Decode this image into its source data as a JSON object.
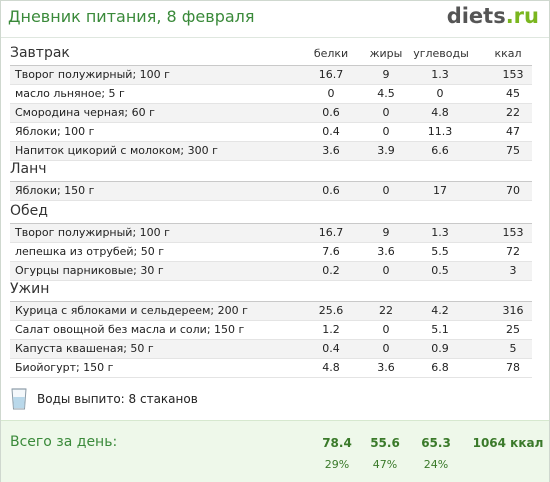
{
  "header": {
    "title": "Дневник питания, 8 февраля",
    "logo_main": "diets",
    "logo_tld": ".ru"
  },
  "columns": {
    "protein": "белки",
    "fat": "жиры",
    "carbs": "углеводы",
    "kcal": "ккал"
  },
  "meals": [
    {
      "title": "Завтрак",
      "items": [
        {
          "name": "Творог полужирный; 100 г",
          "protein": "16.7",
          "fat": "9",
          "carbs": "1.3",
          "kcal": "153"
        },
        {
          "name": "масло льняное; 5 г",
          "protein": "0",
          "fat": "4.5",
          "carbs": "0",
          "kcal": "45"
        },
        {
          "name": "Смородина черная; 60 г",
          "protein": "0.6",
          "fat": "0",
          "carbs": "4.8",
          "kcal": "22"
        },
        {
          "name": "Яблоки; 100 г",
          "protein": "0.4",
          "fat": "0",
          "carbs": "11.3",
          "kcal": "47"
        },
        {
          "name": "Напиток цикорий с молоком; 300 г",
          "protein": "3.6",
          "fat": "3.9",
          "carbs": "6.6",
          "kcal": "75"
        }
      ]
    },
    {
      "title": "Ланч",
      "items": [
        {
          "name": "Яблоки; 150 г",
          "protein": "0.6",
          "fat": "0",
          "carbs": "17",
          "kcal": "70"
        }
      ]
    },
    {
      "title": "Обед",
      "items": [
        {
          "name": "Творог полужирный; 100 г",
          "protein": "16.7",
          "fat": "9",
          "carbs": "1.3",
          "kcal": "153"
        },
        {
          "name": "лепешка из отрубей; 50 г",
          "protein": "7.6",
          "fat": "3.6",
          "carbs": "5.5",
          "kcal": "72"
        },
        {
          "name": "Огурцы парниковые; 30 г",
          "protein": "0.2",
          "fat": "0",
          "carbs": "0.5",
          "kcal": "3"
        }
      ]
    },
    {
      "title": "Ужин",
      "items": [
        {
          "name": "Курица с яблоками и сельдереем; 200 г",
          "protein": "25.6",
          "fat": "22",
          "carbs": "4.2",
          "kcal": "316"
        },
        {
          "name": "Салат овощной без масла и соли; 150 г",
          "protein": "1.2",
          "fat": "0",
          "carbs": "5.1",
          "kcal": "25"
        },
        {
          "name": "Капуста квашеная; 50 г",
          "protein": "0.4",
          "fat": "0",
          "carbs": "0.9",
          "kcal": "5"
        },
        {
          "name": "Биойогурт; 150 г",
          "protein": "4.8",
          "fat": "3.6",
          "carbs": "6.8",
          "kcal": "78"
        }
      ]
    }
  ],
  "water": {
    "text": "Воды выпито: 8 стаканов",
    "icon": "glass-of-water-icon"
  },
  "totals": {
    "label": "Всего за день:",
    "protein": "78.4",
    "fat": "55.6",
    "carbs": "65.3",
    "kcal": "1064 ккал",
    "protein_pct": "29%",
    "fat_pct": "47%",
    "carbs_pct": "24%"
  },
  "colors": {
    "title_green": "#3a8a3a",
    "totals_bg": "#eef8ea",
    "logo_tld": "#7ab61f"
  }
}
